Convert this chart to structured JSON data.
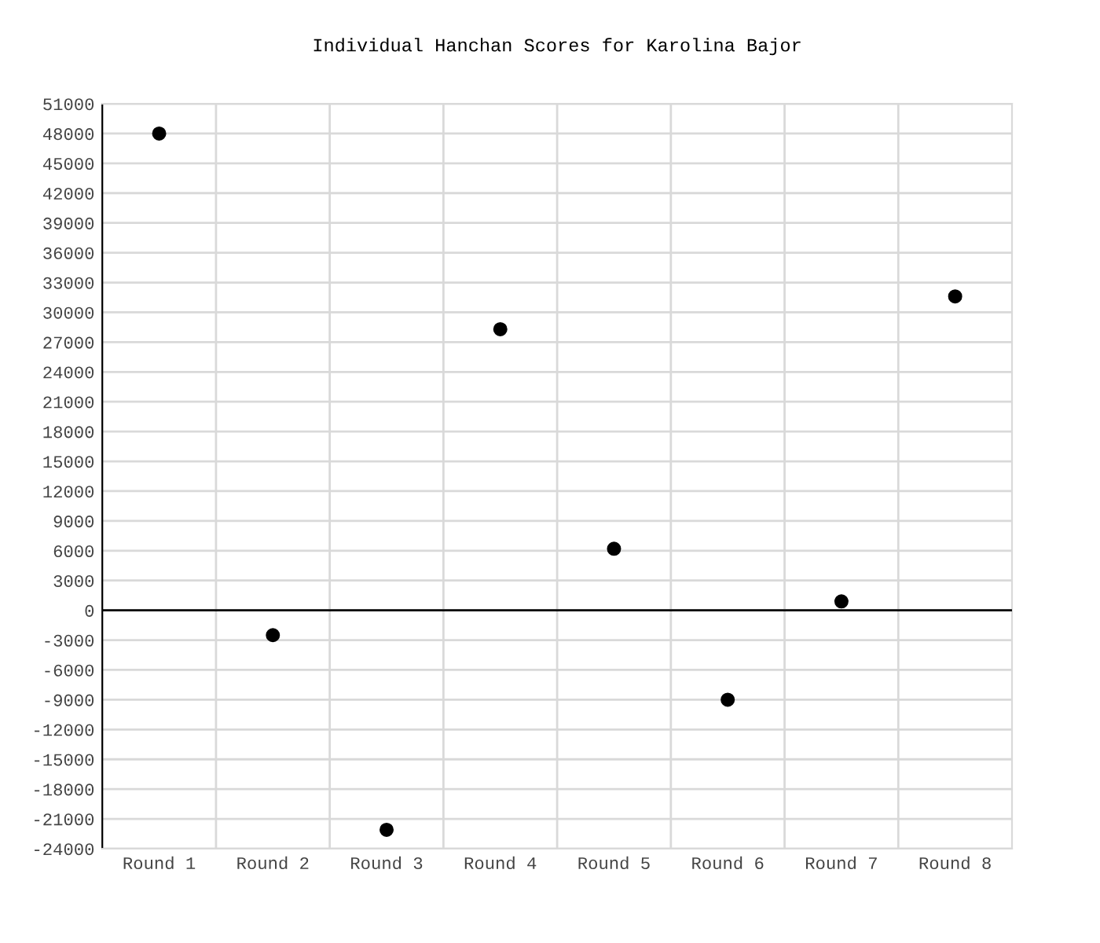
{
  "chart_data": {
    "type": "scatter",
    "title": "Individual Hanchan Scores for Karolina Bajor",
    "categories": [
      "Round 1",
      "Round 2",
      "Round 3",
      "Round 4",
      "Round 5",
      "Round 6",
      "Round 7",
      "Round 8"
    ],
    "series": [
      {
        "color": "#000000",
        "values": [
          48000,
          -2500,
          -22100,
          28300,
          6200,
          -9000,
          900,
          31600
        ]
      }
    ],
    "ylim": [
      -24000,
      51000
    ],
    "yticks": [
      -24000,
      -21000,
      -18000,
      -15000,
      -12000,
      -9000,
      -6000,
      -3000,
      0,
      3000,
      6000,
      9000,
      12000,
      15000,
      18000,
      21000,
      24000,
      27000,
      30000,
      33000,
      36000,
      39000,
      42000,
      45000,
      48000,
      51000
    ],
    "ref_lines": [
      {
        "axis": "y",
        "value": 0,
        "color": "#000000"
      }
    ],
    "grid": true,
    "marker": "circle",
    "legend": false
  }
}
